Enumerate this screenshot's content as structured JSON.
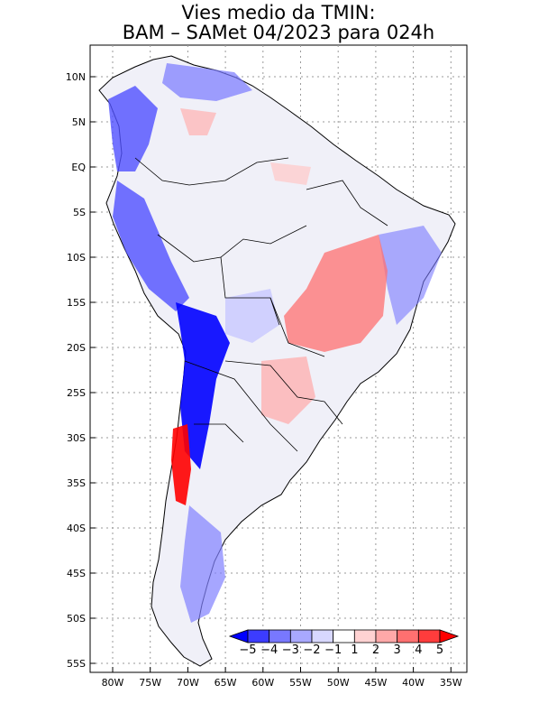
{
  "title": {
    "line1": "Vies medio da TMIN:",
    "line2": "BAM – SAMet 04/2023  para 024h"
  },
  "map": {
    "region": "South America",
    "lat_labels": [
      "10N",
      "5N",
      "EQ",
      "5S",
      "10S",
      "15S",
      "20S",
      "25S",
      "30S",
      "35S",
      "40S",
      "45S",
      "50S",
      "55S"
    ],
    "lon_labels": [
      "80W",
      "75W",
      "70W",
      "65W",
      "60W",
      "55W",
      "50W",
      "45W",
      "40W",
      "35W"
    ],
    "lat_range": [
      -55,
      12
    ],
    "lon_range": [
      -83,
      -34
    ]
  },
  "colorbar": {
    "ticks": [
      "−5",
      "−4",
      "−3",
      "−2",
      "−1",
      "1",
      "2",
      "3",
      "4",
      "5"
    ],
    "colors": [
      "#0000ff",
      "#3c3cff",
      "#7878ff",
      "#a8a8ff",
      "#d8d8ff",
      "#ffffff",
      "#ffd2d2",
      "#ffa8a8",
      "#ff7070",
      "#ff3c3c",
      "#ff0000"
    ]
  }
}
